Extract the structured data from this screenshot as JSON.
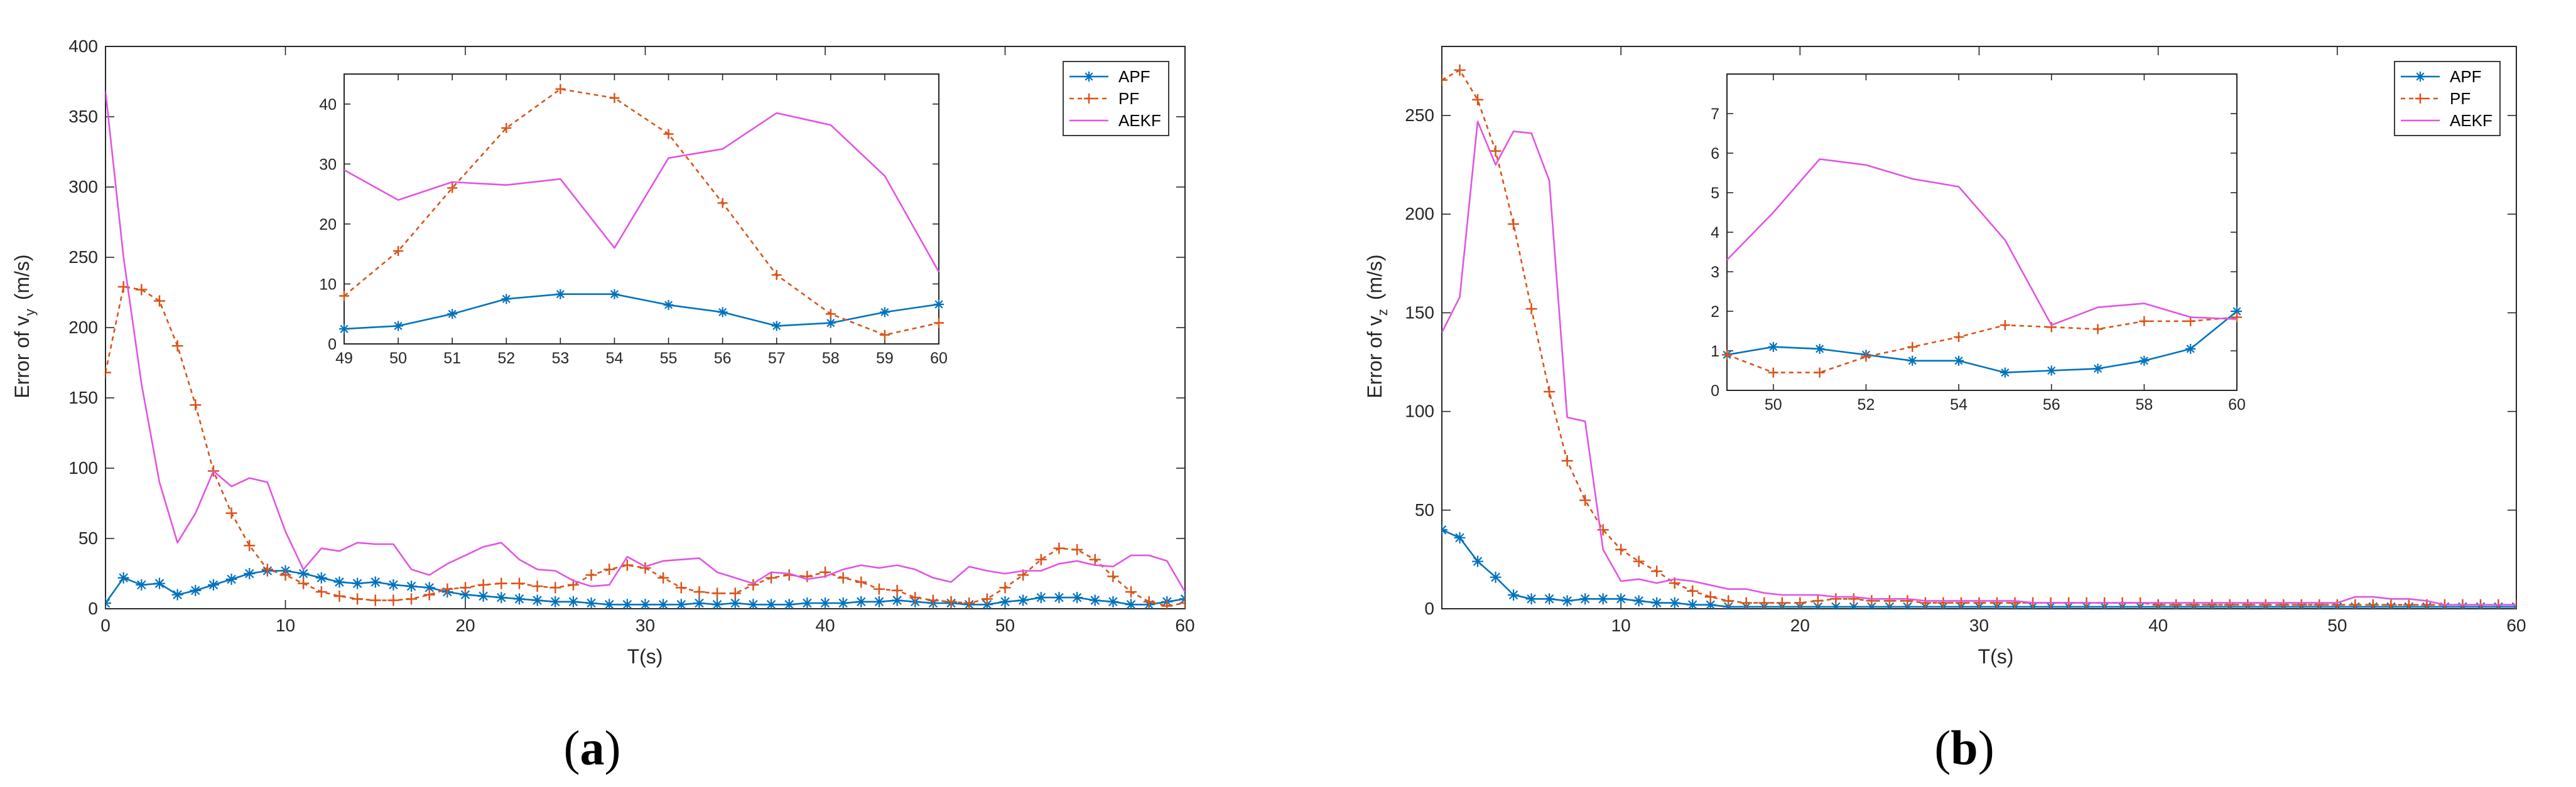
{
  "colors": {
    "APF": "#0072BD",
    "PF": "#D95319",
    "AEKF": "#E254E2",
    "axis": "#262626"
  },
  "legend_entries": [
    "APF",
    "PF",
    "AEKF"
  ],
  "chart_data": [
    {
      "type": "line",
      "caption_letter": "a",
      "caption": "(a)",
      "xlabel": "T(s)",
      "ylabel_main": "Error of v",
      "ylabel_sub": "y",
      "ylabel_unit": "(m/s)",
      "xlim": [
        0,
        60
      ],
      "ylim": [
        0,
        400
      ],
      "xticks": [
        0,
        10,
        20,
        30,
        40,
        50,
        60
      ],
      "yticks": [
        0,
        50,
        100,
        150,
        200,
        250,
        300,
        350,
        400
      ],
      "x": [
        0,
        1,
        2,
        3,
        4,
        5,
        6,
        7,
        8,
        9,
        10,
        11,
        12,
        13,
        14,
        15,
        16,
        17,
        18,
        19,
        20,
        21,
        22,
        23,
        24,
        25,
        26,
        27,
        28,
        29,
        30,
        31,
        32,
        33,
        34,
        35,
        36,
        37,
        38,
        39,
        40,
        41,
        42,
        43,
        44,
        45,
        46,
        47,
        48,
        49,
        50,
        51,
        52,
        53,
        54,
        55,
        56,
        57,
        58,
        59,
        60
      ],
      "series": [
        {
          "name": "APF",
          "marker": "star",
          "values": [
            4,
            22,
            17,
            18,
            10,
            13,
            17,
            21,
            25,
            27,
            27,
            25,
            22,
            19,
            18,
            19,
            17,
            16,
            15,
            12,
            10,
            9,
            8,
            7,
            6,
            5,
            5,
            4,
            3,
            3,
            3,
            3,
            3,
            4,
            3,
            4,
            3,
            3,
            3,
            4,
            4,
            4,
            5,
            5,
            6,
            5,
            4,
            4,
            3,
            3,
            5,
            6,
            8,
            8,
            8,
            6,
            5,
            3,
            3,
            5,
            7
          ]
        },
        {
          "name": "PF",
          "marker": "plus",
          "values": [
            168,
            229,
            227,
            219,
            187,
            145,
            98,
            68,
            45,
            28,
            24,
            18,
            12,
            9,
            7,
            6,
            6,
            7,
            10,
            14,
            15,
            17,
            18,
            18,
            16,
            15,
            17,
            24,
            28,
            31,
            29,
            22,
            15,
            12,
            11,
            11,
            17,
            22,
            24,
            23,
            26,
            22,
            19,
            14,
            13,
            8,
            6,
            5,
            4,
            7,
            15,
            24,
            35,
            43,
            42,
            35,
            23,
            12,
            5,
            2,
            4
          ]
        },
        {
          "name": "AEKF",
          "marker": "none",
          "values": [
            368,
            250,
            160,
            90,
            47,
            68,
            98,
            87,
            93,
            90,
            55,
            28,
            43,
            41,
            47,
            46,
            46,
            28,
            24,
            32,
            38,
            44,
            47,
            35,
            28,
            27,
            20,
            16,
            17,
            37,
            30,
            34,
            35,
            36,
            26,
            22,
            18,
            26,
            25,
            21,
            23,
            28,
            31,
            29,
            31,
            28,
            22,
            19,
            30,
            27,
            25,
            27,
            27,
            32,
            34,
            31,
            30,
            38,
            38,
            34,
            12
          ]
        }
      ],
      "inset": {
        "xlim": [
          49,
          60
        ],
        "ylim": [
          0,
          45
        ],
        "xticks": [
          49,
          50,
          51,
          52,
          53,
          54,
          55,
          56,
          57,
          58,
          59,
          60
        ],
        "yticks": [
          0,
          10,
          20,
          30,
          40
        ],
        "x": [
          49,
          50,
          51,
          52,
          53,
          54,
          55,
          56,
          57,
          58,
          59,
          60
        ],
        "series": [
          {
            "name": "APF",
            "values": [
              2.5,
              3,
              5,
              7.5,
              8.3,
              8.3,
              6.5,
              5.3,
              3,
              3.5,
              5.3,
              6.6
            ]
          },
          {
            "name": "PF",
            "values": [
              8,
              15.5,
              26,
              36,
              42.5,
              41,
              35,
              23.5,
              11.5,
              5,
              1.5,
              3.5
            ]
          },
          {
            "name": "AEKF",
            "values": [
              29,
              24,
              27,
              26.5,
              27.5,
              16,
              31,
              32.5,
              38.5,
              36.5,
              28,
              12
            ]
          }
        ]
      }
    },
    {
      "type": "line",
      "caption_letter": "b",
      "caption": "(b)",
      "xlabel": "T(s)",
      "ylabel_main": "Error of v",
      "ylabel_sub": "z",
      "ylabel_unit": "(m/s)",
      "xlim": [
        0,
        60
      ],
      "ylim": [
        0,
        285
      ],
      "xticks": [
        10,
        20,
        30,
        40,
        50,
        60
      ],
      "yticks": [
        0,
        50,
        100,
        150,
        200,
        250
      ],
      "x": [
        0,
        1,
        2,
        3,
        4,
        5,
        6,
        7,
        8,
        9,
        10,
        11,
        12,
        13,
        14,
        15,
        16,
        17,
        18,
        19,
        20,
        21,
        22,
        23,
        24,
        25,
        26,
        27,
        28,
        29,
        30,
        31,
        32,
        33,
        34,
        35,
        36,
        37,
        38,
        39,
        40,
        41,
        42,
        43,
        44,
        45,
        46,
        47,
        48,
        49,
        50,
        51,
        52,
        53,
        54,
        55,
        56,
        57,
        58,
        59,
        60
      ],
      "series": [
        {
          "name": "APF",
          "marker": "star",
          "values": [
            40,
            36,
            24,
            16,
            7,
            5,
            5,
            4,
            5,
            5,
            5,
            4,
            3,
            3,
            2,
            2,
            1,
            1,
            1,
            1,
            1,
            1,
            1,
            1,
            1,
            1,
            1,
            1,
            1,
            1,
            1,
            1,
            1,
            1,
            1,
            1,
            1,
            1,
            1,
            1,
            1,
            1,
            1,
            1,
            1,
            1,
            1,
            1,
            1,
            1,
            1,
            1,
            1,
            1,
            1,
            1,
            1,
            1,
            1,
            1,
            1
          ]
        },
        {
          "name": "PF",
          "marker": "plus",
          "values": [
            268,
            273,
            258,
            232,
            195,
            152,
            110,
            75,
            55,
            40,
            30,
            24,
            19,
            13,
            9,
            6,
            4,
            3,
            3,
            3,
            3,
            4,
            5,
            5,
            4,
            4,
            4,
            3,
            3,
            3,
            3,
            3,
            3,
            3,
            3,
            3,
            3,
            3,
            3,
            3,
            2,
            2,
            2,
            2,
            2,
            2,
            2,
            2,
            2,
            2,
            2,
            2,
            2,
            2,
            2,
            2,
            2,
            2,
            2,
            2,
            2
          ]
        },
        {
          "name": "AEKF",
          "marker": "none",
          "values": [
            140,
            158,
            247,
            225,
            242,
            241,
            217,
            97,
            95,
            30,
            14,
            15,
            13,
            15,
            14,
            12,
            10,
            10,
            8,
            7,
            7,
            7,
            6,
            6,
            5,
            5,
            5,
            4,
            4,
            4,
            4,
            4,
            4,
            3,
            3,
            3,
            3,
            3,
            3,
            3,
            3,
            3,
            3,
            3,
            3,
            3,
            3,
            3,
            3,
            3,
            3,
            6,
            6,
            5,
            5,
            4,
            2,
            2,
            2,
            2,
            2
          ]
        }
      ],
      "inset": {
        "xlim": [
          49,
          60
        ],
        "ylim": [
          0,
          8
        ],
        "xticks": [
          50,
          52,
          54,
          56,
          58,
          60
        ],
        "yticks": [
          0,
          1,
          2,
          3,
          4,
          5,
          6,
          7
        ],
        "x": [
          49,
          50,
          51,
          52,
          53,
          54,
          55,
          56,
          57,
          58,
          59,
          60
        ],
        "series": [
          {
            "name": "APF",
            "values": [
              0.9,
              1.1,
              1.05,
              0.9,
              0.75,
              0.75,
              0.45,
              0.5,
              0.55,
              0.75,
              1.05,
              2.0
            ]
          },
          {
            "name": "PF",
            "values": [
              0.9,
              0.45,
              0.45,
              0.85,
              1.1,
              1.35,
              1.65,
              1.6,
              1.55,
              1.75,
              1.75,
              1.85
            ]
          },
          {
            "name": "AEKF",
            "values": [
              3.3,
              4.5,
              5.85,
              5.7,
              5.35,
              5.15,
              3.8,
              1.65,
              2.1,
              2.2,
              1.85,
              1.8
            ]
          }
        ]
      }
    }
  ]
}
